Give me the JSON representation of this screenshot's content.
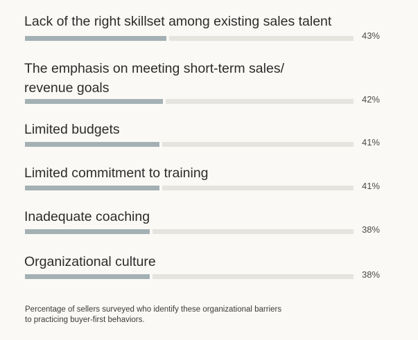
{
  "chart_data": {
    "type": "bar",
    "orientation": "horizontal",
    "categories": [
      "Lack of the right skillset among existing sales talent",
      "The emphasis on meeting short-term sales/\nrevenue goals",
      "Limited budgets",
      "Limited commitment to training",
      "Inadequate coaching",
      "Organizational culture"
    ],
    "values": [
      43,
      42,
      41,
      41,
      38,
      38
    ],
    "value_labels": [
      "43%",
      "42%",
      "41%",
      "41%",
      "38%",
      "38%"
    ],
    "xlim": [
      0,
      100
    ],
    "grid": false,
    "legend": "none",
    "colors": {
      "fill": "#a3b0b4",
      "track": "#e6e4df",
      "background": "#fbf9f5"
    }
  },
  "footnote": "Percentage of sellers surveyed who identify these organizational barriers\nto practicing buyer-first behaviors."
}
